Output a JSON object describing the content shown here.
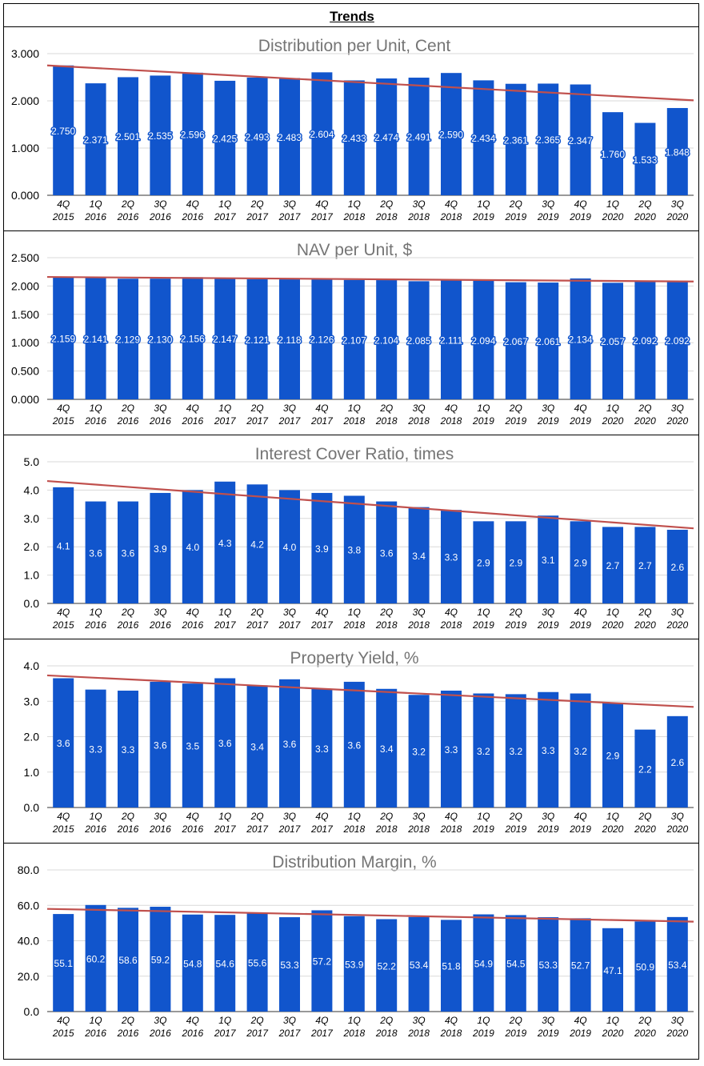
{
  "page_title": "Trends",
  "colors": {
    "bar": "#1155cc",
    "trend": "#c0504d",
    "grid": "#d9d9d9",
    "title": "#757575",
    "label_outline": "#1155cc"
  },
  "x_categories": [
    {
      "q": "4Q",
      "y": "2015"
    },
    {
      "q": "1Q",
      "y": "2016"
    },
    {
      "q": "2Q",
      "y": "2016"
    },
    {
      "q": "3Q",
      "y": "2016"
    },
    {
      "q": "4Q",
      "y": "2016"
    },
    {
      "q": "1Q",
      "y": "2017"
    },
    {
      "q": "2Q",
      "y": "2017"
    },
    {
      "q": "3Q",
      "y": "2017"
    },
    {
      "q": "4Q",
      "y": "2017"
    },
    {
      "q": "1Q",
      "y": "2018"
    },
    {
      "q": "2Q",
      "y": "2018"
    },
    {
      "q": "3Q",
      "y": "2018"
    },
    {
      "q": "4Q",
      "y": "2018"
    },
    {
      "q": "1Q",
      "y": "2019"
    },
    {
      "q": "2Q",
      "y": "2019"
    },
    {
      "q": "3Q",
      "y": "2019"
    },
    {
      "q": "4Q",
      "y": "2019"
    },
    {
      "q": "1Q",
      "y": "2020"
    },
    {
      "q": "2Q",
      "y": "2020"
    },
    {
      "q": "3Q",
      "y": "2020"
    }
  ],
  "chart_data": [
    {
      "type": "bar",
      "title": "Distribution per Unit, Cent",
      "ylim": [
        0,
        3
      ],
      "yticks": [
        "0.000",
        "1.000",
        "2.000",
        "3.000"
      ],
      "decimals": 3,
      "values": [
        2.75,
        2.371,
        2.501,
        2.535,
        2.596,
        2.425,
        2.493,
        2.483,
        2.604,
        2.433,
        2.474,
        2.491,
        2.59,
        2.434,
        2.361,
        2.365,
        2.347,
        1.76,
        1.533,
        1.848
      ],
      "trendline": [
        2.75,
        2.01
      ]
    },
    {
      "type": "bar",
      "title": "NAV per Unit, $",
      "ylim": [
        0,
        2.5
      ],
      "yticks": [
        "0.000",
        "0.500",
        "1.000",
        "1.500",
        "2.000",
        "2.500"
      ],
      "decimals": 3,
      "values": [
        2.159,
        2.141,
        2.129,
        2.13,
        2.156,
        2.147,
        2.121,
        2.118,
        2.126,
        2.107,
        2.104,
        2.085,
        2.111,
        2.094,
        2.067,
        2.061,
        2.134,
        2.057,
        2.092,
        2.092
      ],
      "trendline": [
        2.16,
        2.08
      ]
    },
    {
      "type": "bar",
      "title": "Interest Cover Ratio, times",
      "ylim": [
        0,
        5
      ],
      "yticks": [
        "0.0",
        "1.0",
        "2.0",
        "3.0",
        "4.0",
        "5.0"
      ],
      "decimals": 1,
      "values": [
        4.1,
        3.6,
        3.6,
        3.9,
        4.0,
        4.3,
        4.2,
        4.0,
        3.9,
        3.8,
        3.6,
        3.4,
        3.3,
        2.9,
        2.9,
        3.1,
        2.9,
        2.7,
        2.7,
        2.6
      ],
      "trendline": [
        4.32,
        2.65
      ]
    },
    {
      "type": "bar",
      "title": "Property Yield, %",
      "ylim": [
        0,
        4
      ],
      "yticks": [
        "0.0",
        "1.0",
        "2.0",
        "3.0",
        "4.0"
      ],
      "decimals": 1,
      "values": [
        3.6,
        3.3,
        3.3,
        3.6,
        3.5,
        3.6,
        3.4,
        3.6,
        3.3,
        3.6,
        3.4,
        3.2,
        3.3,
        3.2,
        3.2,
        3.3,
        3.2,
        2.9,
        2.2,
        2.6
      ],
      "bar_values": [
        3.65,
        3.33,
        3.3,
        3.55,
        3.5,
        3.65,
        3.45,
        3.62,
        3.35,
        3.55,
        3.35,
        3.18,
        3.3,
        3.22,
        3.2,
        3.26,
        3.22,
        2.95,
        2.2,
        2.58
      ],
      "trendline": [
        3.73,
        2.84
      ]
    },
    {
      "type": "bar",
      "title": "Distribution Margin, %",
      "ylim": [
        0,
        80
      ],
      "yticks": [
        "0.0",
        "20.0",
        "40.0",
        "60.0",
        "80.0"
      ],
      "decimals": 1,
      "values": [
        55.1,
        60.2,
        58.6,
        59.2,
        54.8,
        54.6,
        55.6,
        53.3,
        57.2,
        53.9,
        52.2,
        53.4,
        51.8,
        54.9,
        54.5,
        53.3,
        52.7,
        47.1,
        50.9,
        53.4
      ],
      "trendline": [
        58.0,
        50.8
      ]
    }
  ]
}
